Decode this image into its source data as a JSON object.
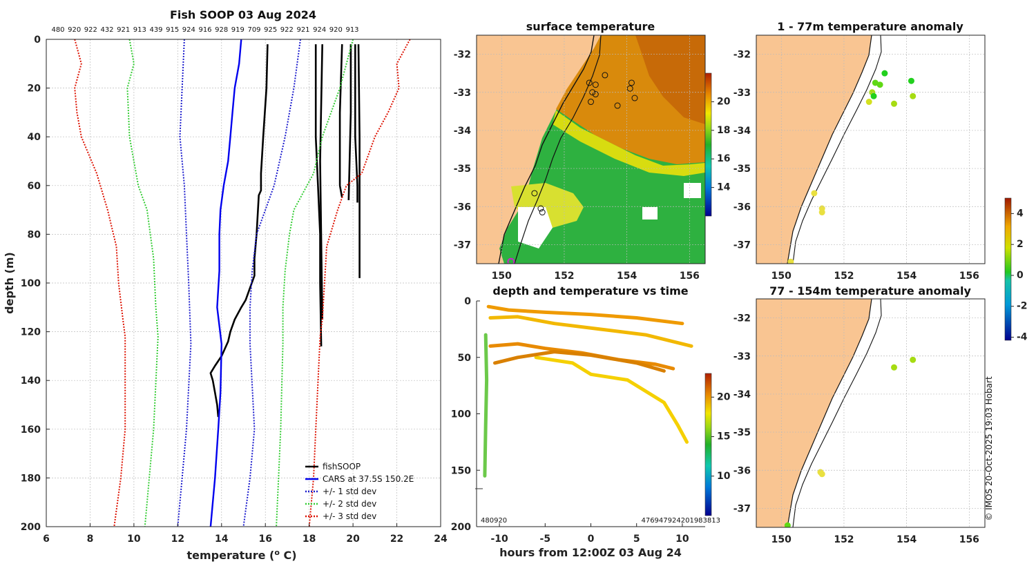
{
  "figure_title": "Fish SOOP 03 Aug 2024",
  "copyright": "© IMOS 20-Oct-2025 19:03 Hobart",
  "colors": {
    "land": "#f9c592",
    "fish": "#000000",
    "cars": "#0000ee",
    "std1": "#1a1acd",
    "std2": "#33cc33",
    "std3": "#dd1100"
  },
  "chart_data": [
    {
      "id": "profile",
      "type": "line",
      "title": "Fish SOOP 03 Aug 2024",
      "xlabel": "temperature (",
      "xlabel_sup": "o",
      "xlabel_tail": " C)",
      "ylabel": "depth (m)",
      "xlim": [
        6,
        24
      ],
      "ylim": [
        0,
        200
      ],
      "xticks": [
        "6",
        "8",
        "10",
        "12",
        "14",
        "16",
        "18",
        "20",
        "22",
        "24"
      ],
      "yticks": [
        "0",
        "20",
        "40",
        "60",
        "80",
        "100",
        "120",
        "140",
        "160",
        "180",
        "200"
      ],
      "top_labels": [
        "480",
        "920",
        "922",
        "432",
        "921",
        "913",
        "439",
        "915",
        "924",
        "916",
        "928",
        "919",
        "709",
        "925",
        "922",
        "921",
        "924",
        "920",
        "913"
      ],
      "legend": [
        "fishSOOP",
        "CARS at 37.5S 150.2E",
        "+/- 1 std dev",
        "+/- 2 std dev",
        "+/- 3 std dev"
      ],
      "series": [
        {
          "name": "fishSOOP",
          "points": [
            [
              16.1,
              2
            ],
            [
              16.05,
              20
            ],
            [
              15.9,
              40
            ],
            [
              15.8,
              55
            ],
            [
              15.8,
              62
            ],
            [
              15.7,
              64
            ],
            [
              15.6,
              80
            ],
            [
              15.5,
              90
            ],
            [
              15.5,
              97
            ],
            [
              15.3,
              102
            ],
            [
              15.1,
              107
            ],
            [
              14.9,
              110
            ],
            [
              14.6,
              115
            ],
            [
              14.4,
              120
            ],
            [
              14.3,
              124
            ],
            [
              14.0,
              130
            ],
            [
              13.7,
              134
            ],
            [
              13.5,
              137
            ],
            [
              13.6,
              140
            ],
            [
              13.7,
              145
            ],
            [
              13.8,
              150
            ],
            [
              13.85,
              155
            ]
          ]
        },
        {
          "name": "fishSOOP",
          "points": [
            [
              18.3,
              2
            ],
            [
              18.3,
              40
            ],
            [
              18.4,
              60
            ],
            [
              18.5,
              80
            ],
            [
              18.5,
              100
            ],
            [
              18.55,
              126
            ]
          ]
        },
        {
          "name": "fishSOOP",
          "points": [
            [
              18.6,
              2
            ],
            [
              18.5,
              50
            ],
            [
              18.6,
              115
            ]
          ]
        },
        {
          "name": "fishSOOP",
          "points": [
            [
              19.5,
              2
            ],
            [
              19.4,
              30
            ],
            [
              19.4,
              60
            ],
            [
              19.5,
              65
            ]
          ]
        },
        {
          "name": "fishSOOP",
          "points": [
            [
              19.9,
              2
            ],
            [
              19.9,
              30
            ],
            [
              19.8,
              66
            ]
          ]
        },
        {
          "name": "fishSOOP",
          "points": [
            [
              20.1,
              2
            ],
            [
              20.1,
              40
            ],
            [
              20.2,
              60
            ],
            [
              20.2,
              67
            ]
          ]
        },
        {
          "name": "fishSOOP",
          "points": [
            [
              20.25,
              2
            ],
            [
              20.3,
              40
            ],
            [
              20.3,
              60
            ],
            [
              20.3,
              98
            ]
          ]
        },
        {
          "name": "CARS at 37.5S 150.2E",
          "points": [
            [
              14.9,
              0
            ],
            [
              14.8,
              10
            ],
            [
              14.6,
              20
            ],
            [
              14.5,
              30
            ],
            [
              14.4,
              40
            ],
            [
              14.3,
              50
            ],
            [
              14.1,
              60
            ],
            [
              13.95,
              70
            ],
            [
              13.9,
              80
            ],
            [
              13.9,
              95
            ],
            [
              13.8,
              110
            ],
            [
              14.0,
              125
            ],
            [
              13.95,
              145
            ],
            [
              13.85,
              160
            ],
            [
              13.7,
              180
            ],
            [
              13.5,
              200
            ]
          ]
        },
        {
          "name": "+/- 1 std dev",
          "points": [
            [
              12.3,
              0
            ],
            [
              12.2,
              20
            ],
            [
              12.1,
              40
            ],
            [
              12.3,
              60
            ],
            [
              12.4,
              80
            ],
            [
              12.5,
              100
            ],
            [
              12.6,
              125
            ],
            [
              12.4,
              160
            ],
            [
              12.2,
              180
            ],
            [
              12.0,
              200
            ]
          ]
        },
        {
          "name": "+/- 1 std dev",
          "points": [
            [
              17.6,
              0
            ],
            [
              17.3,
              20
            ],
            [
              16.9,
              40
            ],
            [
              16.4,
              60
            ],
            [
              15.6,
              80
            ],
            [
              15.4,
              95
            ],
            [
              15.3,
              110
            ],
            [
              15.3,
              125
            ],
            [
              15.5,
              160
            ],
            [
              15.3,
              180
            ],
            [
              15.0,
              200
            ]
          ]
        },
        {
          "name": "+/- 2 std dev",
          "points": [
            [
              9.8,
              0
            ],
            [
              10.0,
              10
            ],
            [
              9.7,
              20
            ],
            [
              9.8,
              40
            ],
            [
              10.2,
              60
            ],
            [
              10.6,
              70
            ],
            [
              10.9,
              90
            ],
            [
              11.0,
              110
            ],
            [
              11.1,
              122
            ],
            [
              10.9,
              160
            ],
            [
              10.7,
              180
            ],
            [
              10.5,
              200
            ]
          ]
        },
        {
          "name": "+/- 2 std dev",
          "points": [
            [
              20.0,
              0
            ],
            [
              19.4,
              20
            ],
            [
              18.6,
              40
            ],
            [
              18.2,
              55
            ],
            [
              17.9,
              60
            ],
            [
              17.3,
              70
            ],
            [
              17.1,
              80
            ],
            [
              16.9,
              95
            ],
            [
              16.8,
              110
            ],
            [
              16.8,
              125
            ],
            [
              16.7,
              160
            ],
            [
              16.6,
              180
            ],
            [
              16.5,
              200
            ]
          ]
        },
        {
          "name": "+/- 3 std dev",
          "points": [
            [
              7.3,
              0
            ],
            [
              7.6,
              10
            ],
            [
              7.3,
              20
            ],
            [
              7.4,
              30
            ],
            [
              7.6,
              40
            ],
            [
              8.3,
              55
            ],
            [
              8.8,
              70
            ],
            [
              9.2,
              85
            ],
            [
              9.3,
              100
            ],
            [
              9.5,
              115
            ],
            [
              9.6,
              122
            ],
            [
              9.6,
              160
            ],
            [
              9.4,
              180
            ],
            [
              9.1,
              200
            ]
          ]
        },
        {
          "name": "+/- 3 std dev",
          "points": [
            [
              22.6,
              0
            ],
            [
              22.0,
              10
            ],
            [
              22.1,
              20
            ],
            [
              21.6,
              30
            ],
            [
              21.0,
              40
            ],
            [
              20.4,
              55
            ],
            [
              19.7,
              60
            ],
            [
              19.3,
              70
            ],
            [
              18.8,
              85
            ],
            [
              18.7,
              100
            ],
            [
              18.6,
              115
            ],
            [
              18.5,
              122
            ],
            [
              18.3,
              160
            ],
            [
              18.2,
              180
            ],
            [
              18.0,
              200
            ]
          ]
        }
      ]
    },
    {
      "id": "sst",
      "type": "heatmap",
      "title": "surface temperature",
      "xlim": [
        149.2,
        156.5
      ],
      "ylim": [
        -37.5,
        -31.5
      ],
      "xticks": [
        "150",
        "152",
        "154",
        "156"
      ],
      "yticks": [
        "-32",
        "-33",
        "-34",
        "-35",
        "-36",
        "-37"
      ],
      "colorbar": {
        "range": [
          12,
          22
        ],
        "ticks": [
          "14",
          "16",
          "18",
          "20"
        ]
      },
      "stations": [
        [
          152.8,
          -32.75
        ],
        [
          153.0,
          -32.8
        ],
        [
          153.3,
          -32.55
        ],
        [
          152.9,
          -33.0
        ],
        [
          152.85,
          -33.25
        ],
        [
          153.0,
          -33.05
        ],
        [
          153.7,
          -33.35
        ],
        [
          154.15,
          -32.75
        ],
        [
          154.25,
          -33.15
        ],
        [
          154.1,
          -32.9
        ],
        [
          151.05,
          -35.65
        ],
        [
          151.25,
          -36.05
        ],
        [
          151.3,
          -36.15
        ]
      ],
      "highlight": [
        150.3,
        -37.45
      ]
    },
    {
      "id": "anom1",
      "type": "scatter",
      "title": "1 - 77m temperature anomaly",
      "xlim": [
        149.2,
        156.5
      ],
      "ylim": [
        -37.5,
        -31.5
      ],
      "xticks": [
        "150",
        "152",
        "154",
        "156"
      ],
      "yticks": [
        "-32",
        "-33",
        "-34",
        "-35",
        "-36",
        "-37"
      ],
      "points": [
        [
          153.3,
          -32.5,
          0.1
        ],
        [
          154.15,
          -32.7,
          0.2
        ],
        [
          153.0,
          -32.75,
          0.6
        ],
        [
          153.15,
          -32.8,
          0.5
        ],
        [
          152.9,
          -33.0,
          1.0
        ],
        [
          152.95,
          -33.1,
          0.3
        ],
        [
          152.8,
          -33.25,
          1.6
        ],
        [
          153.6,
          -33.3,
          1.0
        ],
        [
          154.2,
          -33.1,
          1.1
        ],
        [
          151.05,
          -35.65,
          2.2
        ],
        [
          151.3,
          -36.05,
          2.1
        ],
        [
          151.3,
          -36.15,
          2.2
        ],
        [
          150.3,
          -37.45,
          2.4
        ]
      ]
    },
    {
      "id": "anom2",
      "type": "scatter",
      "title": "77 - 154m temperature anomaly",
      "xlim": [
        149.2,
        156.5
      ],
      "ylim": [
        -37.5,
        -31.5
      ],
      "xticks": [
        "150",
        "152",
        "154",
        "156"
      ],
      "yticks": [
        "-32",
        "-33",
        "-34",
        "-35",
        "-36",
        "-37"
      ],
      "points": [
        [
          153.6,
          -33.3,
          1.3
        ],
        [
          154.2,
          -33.1,
          1.0
        ],
        [
          151.25,
          -36.05,
          2.2
        ],
        [
          151.3,
          -36.1,
          2.3
        ],
        [
          150.2,
          -37.45,
          0.4
        ]
      ],
      "colorbar": {
        "range": [
          -4.2,
          5
        ],
        "ticks": [
          "4",
          "2",
          "0",
          "-2",
          "-4"
        ]
      }
    },
    {
      "id": "depthtime",
      "type": "line",
      "title": "depth and temperature vs time",
      "xlabel": "hours from 12:00Z 03 Aug 24",
      "xlim": [
        -12.5,
        12.5
      ],
      "ylim": [
        0,
        200
      ],
      "xticks": [
        "-10",
        "-5",
        "0",
        "5",
        "10"
      ],
      "yticks": [
        "0",
        "50",
        "100",
        "150",
        "200"
      ],
      "colorbar": {
        "range": [
          5,
          23
        ],
        "ticks": [
          "10",
          "15",
          "20"
        ]
      },
      "bottom_left_label": "480920",
      "bottom_right_label": "476947924201983813",
      "series": [
        {
          "color": "#ef9a00",
          "points": [
            [
              -11.2,
              5
            ],
            [
              -9,
              8
            ],
            [
              -5,
              10
            ],
            [
              0,
              12
            ],
            [
              5,
              15
            ],
            [
              10,
              20
            ]
          ]
        },
        {
          "color": "#f2b800",
          "points": [
            [
              -11,
              15
            ],
            [
              -8,
              14
            ],
            [
              -4,
              20
            ],
            [
              1,
              25
            ],
            [
              6,
              30
            ],
            [
              11,
              40
            ]
          ]
        },
        {
          "color": "#e88a00",
          "points": [
            [
              -11,
              40
            ],
            [
              -8,
              38
            ],
            [
              -5,
              42
            ],
            [
              -1,
              46
            ],
            [
              3,
              52
            ],
            [
              7,
              56
            ],
            [
              9,
              60
            ]
          ]
        },
        {
          "color": "#f5d000",
          "points": [
            [
              -6,
              50
            ],
            [
              -2,
              55
            ],
            [
              0,
              65
            ],
            [
              4,
              70
            ],
            [
              8,
              90
            ],
            [
              9.5,
              110
            ],
            [
              10.5,
              125
            ]
          ]
        },
        {
          "color": "#d98000",
          "points": [
            [
              -10.5,
              55
            ],
            [
              -8,
              50
            ],
            [
              -4,
              45
            ],
            [
              0,
              48
            ],
            [
              5,
              55
            ],
            [
              8,
              62
            ]
          ]
        },
        {
          "color": "#6cc94a",
          "points": [
            [
              -11.5,
              30
            ],
            [
              -11.4,
              70
            ],
            [
              -11.5,
              110
            ],
            [
              -11.6,
              155
            ]
          ]
        }
      ]
    }
  ]
}
